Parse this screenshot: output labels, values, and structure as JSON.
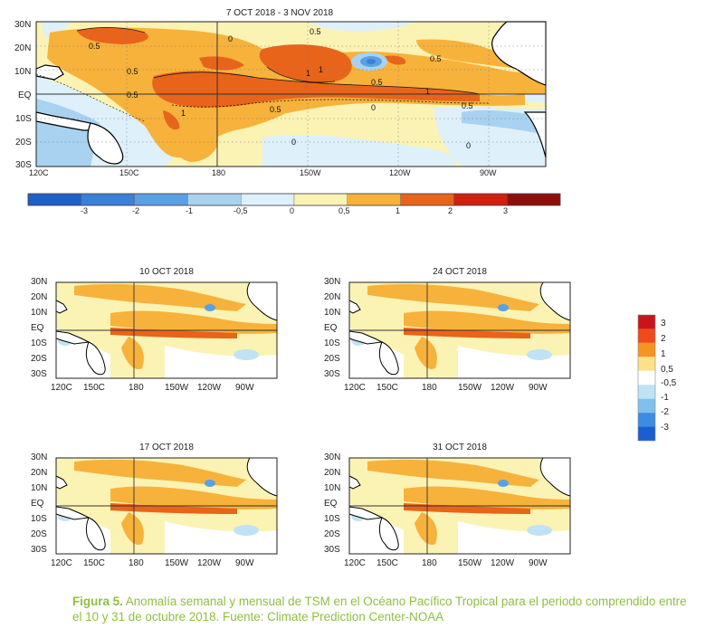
{
  "main_map": {
    "title": "7 OCT 2018 - 3 NOV 2018",
    "lat_labels": [
      "30N",
      "20N",
      "10N",
      "EQ",
      "10S",
      "20S",
      "30S"
    ],
    "lon_labels": [
      "120C",
      "150C",
      "180",
      "150W",
      "120W",
      "90W"
    ],
    "contour_labels": [
      "0.5",
      "0.5",
      "0.5",
      "0.5",
      "0.5",
      "0.5",
      "0.5",
      "1",
      "1",
      "1",
      "1",
      "0.5",
      "0",
      "0",
      "0",
      "0"
    ]
  },
  "main_colorbar": {
    "tick_labels": [
      "-3",
      "-2",
      "-1",
      "-0,5",
      "0",
      "0,5",
      "1",
      "2",
      "3"
    ],
    "colors": [
      "#1f5fc8",
      "#3a7fd8",
      "#5aa0e4",
      "#a8d2f0",
      "#def0fa",
      "#fbf3b4",
      "#f7b23b",
      "#e8641b",
      "#d21f11",
      "#8d0f0c"
    ]
  },
  "small_maps": [
    {
      "title": "10 OCT 2018"
    },
    {
      "title": "24 OCT 2018"
    },
    {
      "title": "17 OCT 2018"
    },
    {
      "title": "31 OCT 2018"
    }
  ],
  "small_axes": {
    "lat_labels": [
      "30N",
      "20N",
      "10N",
      "EQ",
      "10S",
      "20S",
      "30S"
    ],
    "lon_labels": [
      "120C",
      "150C",
      "180",
      "150W",
      "120W",
      "90W"
    ]
  },
  "side_legend": {
    "labels": [
      "3",
      "2",
      "1",
      "0,5",
      "-0,5",
      "-1",
      "-2",
      "-3"
    ],
    "colors": [
      "#c8151b",
      "#ef4a1c",
      "#f79321",
      "#fde08a",
      "#ffffff",
      "#bfe3f4",
      "#7fc0ec",
      "#3c8ce0",
      "#1a5fd0"
    ]
  },
  "caption": {
    "label": "Figura 5.",
    "text": " Anomalía semanal y mensual de TSM en el Océano Pacífico Tropical para el periodo comprendido entre el 10 y 31 de octubre  2018. Fuente: Climate Prediction Center-NOAA"
  }
}
